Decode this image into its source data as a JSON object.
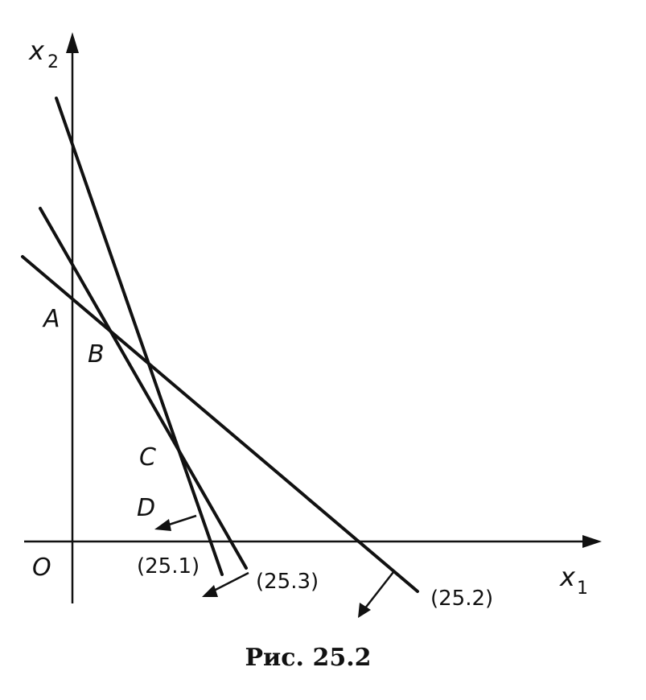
{
  "axes": {
    "x_label": "x",
    "x_sub": "1",
    "y_label": "x",
    "y_sub": "2",
    "origin_label": "O"
  },
  "points": {
    "a": "A",
    "b": "B",
    "c": "C",
    "d": "D"
  },
  "constraints": {
    "c1": "(25.1)",
    "c2": "(25.2)",
    "c3": "(25.3)"
  },
  "caption": "Рис. 25.2"
}
